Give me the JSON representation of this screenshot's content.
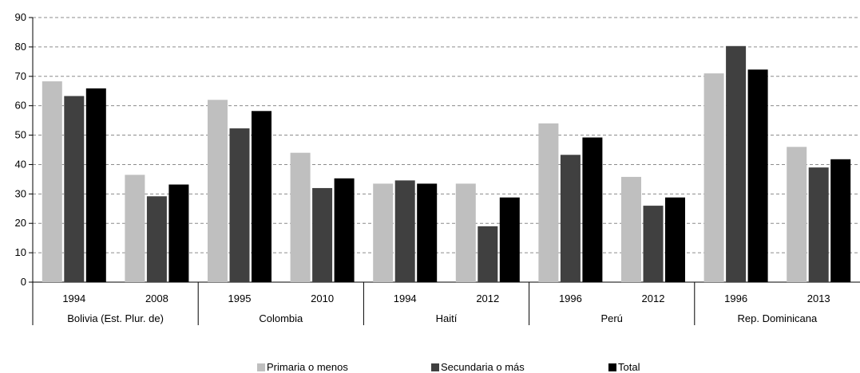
{
  "chart_data": {
    "type": "bar",
    "ylim": [
      0,
      90
    ],
    "yticks": [
      "0",
      "10",
      "20",
      "30",
      "40",
      "50",
      "60",
      "70",
      "80",
      "90"
    ],
    "grid": true,
    "legend_position": "bottom",
    "groups": [
      {
        "label": "Bolivia (Est. Plur. de)",
        "years": [
          "1994",
          "2008"
        ]
      },
      {
        "label": "Colombia",
        "years": [
          "1995",
          "2010"
        ]
      },
      {
        "label": "Haití",
        "years": [
          "1994",
          "2012"
        ]
      },
      {
        "label": "Perú",
        "years": [
          "1996",
          "2012"
        ]
      },
      {
        "label": "Rep. Dominicana",
        "years": [
          "1996",
          "2013"
        ]
      }
    ],
    "series": [
      {
        "name": "Primaria o menos",
        "color": "#bfbfbf",
        "values": [
          68.3,
          36.5,
          62.0,
          44.0,
          33.5,
          33.5,
          54.0,
          35.8,
          71.0,
          46.0
        ]
      },
      {
        "name": "Secundaria o más",
        "color": "#404040",
        "values": [
          63.3,
          29.2,
          52.3,
          32.0,
          34.6,
          19.0,
          43.3,
          26.0,
          80.3,
          39.0
        ]
      },
      {
        "name": "Total",
        "color": "#000000",
        "values": [
          65.9,
          33.2,
          58.2,
          35.3,
          33.5,
          28.8,
          49.2,
          28.8,
          72.3,
          41.8
        ]
      }
    ]
  }
}
